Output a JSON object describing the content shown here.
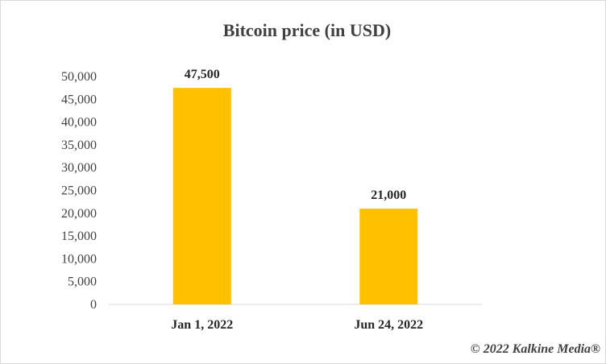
{
  "chart_data": {
    "type": "bar",
    "title": "Bitcoin price (in USD)",
    "categories": [
      "Jan 1, 2022",
      "Jun 24, 2022"
    ],
    "values": [
      47500,
      21000
    ],
    "value_labels": [
      "47,500",
      "21,000"
    ],
    "ylim": [
      0,
      50000
    ],
    "yticks": [
      0,
      5000,
      10000,
      15000,
      20000,
      25000,
      30000,
      35000,
      40000,
      45000,
      50000
    ],
    "ytick_labels": [
      "0",
      "5,000",
      "10,000",
      "15,000",
      "20,000",
      "25,000",
      "30,000",
      "35,000",
      "40,000",
      "45,000",
      "50,000"
    ],
    "xlabel": "",
    "ylabel": "",
    "grid": false,
    "legend": "none",
    "bar_color": "#FFC000"
  },
  "credit": "© 2022 Kalkine Media®"
}
